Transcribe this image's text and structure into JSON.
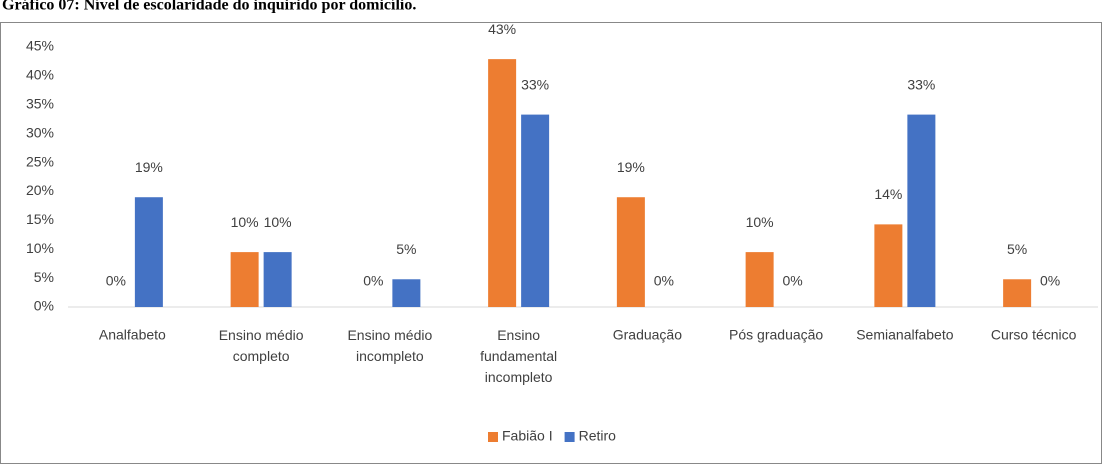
{
  "chart_data": {
    "type": "bar",
    "title": "Gráfico 07: Nível de escolaridade do inquirido por domicílio.",
    "categories": [
      "Analfabeto",
      "Ensino médio completo",
      "Ensino médio incompleto",
      "Ensino fundamental incompleto",
      "Graduação",
      "Pós graduação",
      "Semianalfabeto",
      "Curso técnico"
    ],
    "series": [
      {
        "name": "Fabião I",
        "color": "#ed7d31",
        "values": [
          0,
          9.5,
          0,
          42.9,
          19,
          9.5,
          14.3,
          4.8
        ],
        "value_labels": [
          "0%",
          "10%",
          "0%",
          "43%",
          "19%",
          "10%",
          "14%",
          "5%"
        ]
      },
      {
        "name": "Retiro",
        "color": "#4472c4",
        "values": [
          19,
          9.5,
          4.8,
          33.3,
          0,
          0,
          33.3,
          0
        ],
        "value_labels": [
          "19%",
          "10%",
          "5%",
          "33%",
          "0%",
          "0%",
          "33%",
          "0%"
        ]
      }
    ],
    "ylim": [
      0,
      45
    ],
    "yticks": [
      {
        "value": 0,
        "label": "0%"
      },
      {
        "value": 5,
        "label": "5%"
      },
      {
        "value": 10,
        "label": "10%"
      },
      {
        "value": 15,
        "label": "15%"
      },
      {
        "value": 20,
        "label": "20%"
      },
      {
        "value": 25,
        "label": "25%"
      },
      {
        "value": 30,
        "label": "30%"
      },
      {
        "value": 35,
        "label": "35%"
      },
      {
        "value": 40,
        "label": "40%"
      },
      {
        "value": 45,
        "label": "45%"
      }
    ],
    "grid": false,
    "legend": "bottom"
  }
}
